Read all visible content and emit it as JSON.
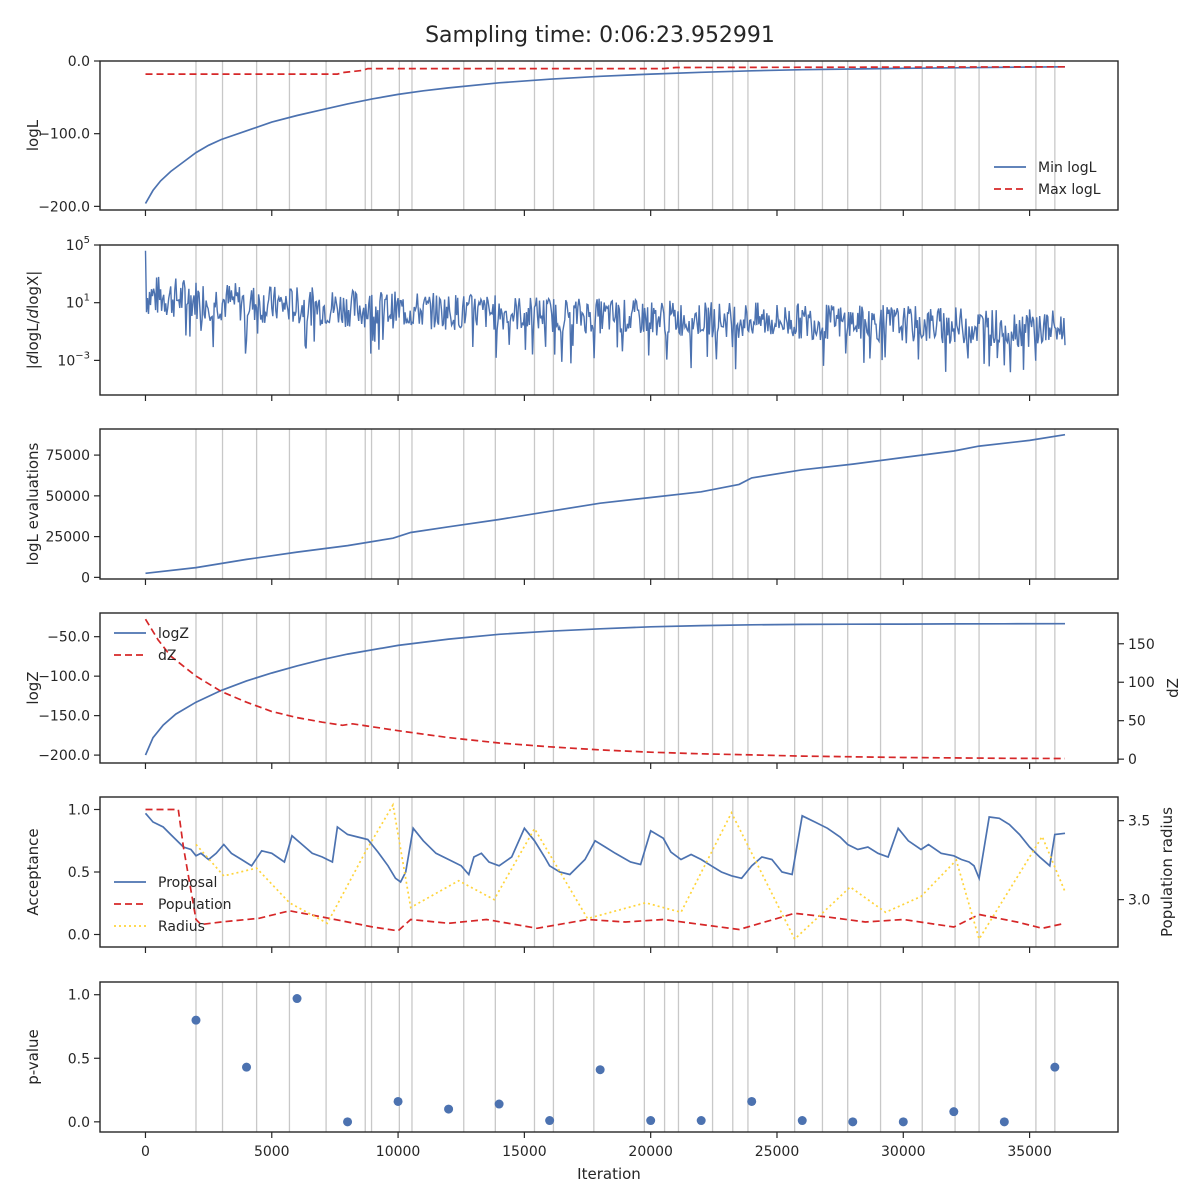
{
  "figure": {
    "title": "Sampling time: 0:06:23.952991"
  },
  "chart_data": [
    {
      "type": "line",
      "ylabel": "logL",
      "ylim": [
        -205,
        0
      ],
      "yticks": [
        0,
        -100,
        -200
      ],
      "legend": {
        "placement": "lower-right",
        "entries": [
          "Min logL",
          "Max logL"
        ]
      },
      "series": [
        {
          "name": "Min logL",
          "color": "#4c72b0",
          "style": "solid",
          "x": [
            0,
            300,
            600,
            1000,
            1500,
            2000,
            2500,
            3000,
            4000,
            5000,
            6000,
            7000,
            8000,
            9000,
            10000,
            11000,
            12000,
            14000,
            16000,
            18000,
            20000,
            22000,
            24000,
            26000,
            28000,
            30000,
            32000,
            34000,
            36400
          ],
          "y": [
            -196,
            -178,
            -165,
            -152,
            -139,
            -126,
            -116,
            -108,
            -96,
            -84,
            -75,
            -67,
            -59,
            -52,
            -46,
            -41,
            -37,
            -30,
            -25,
            -21,
            -18,
            -15.5,
            -13.5,
            -12,
            -11,
            -10,
            -9.3,
            -8.7,
            -8
          ]
        },
        {
          "name": "Max logL",
          "color": "#d62728",
          "style": "dashed",
          "x": [
            0,
            7600,
            7800,
            8600,
            8800,
            20500,
            21000,
            36400
          ],
          "y": [
            -18,
            -18,
            -16,
            -13,
            -10.5,
            -10.5,
            -9,
            -8
          ]
        }
      ]
    },
    {
      "type": "line",
      "ylabel": "|dlogL/dlogX|",
      "yscale": "log",
      "ylim": [
        -5.4,
        5.0
      ],
      "ytick_labels": [
        "10^5",
        "10^1",
        "10^-3"
      ],
      "series": [
        {
          "name": "",
          "color": "#4c72b0",
          "style": "solid",
          "note": "noisy derivative trace",
          "x": [
            0,
            5000,
            10000,
            15000,
            20000,
            25000,
            30000,
            36400
          ],
          "y_log10_upper": [
            3.0,
            2.2,
            1.8,
            1.5,
            1.2,
            1.0,
            0.8,
            0.5
          ],
          "y_log10_lower": [
            0,
            -0.5,
            -0.8,
            -1.0,
            -1.3,
            -1.5,
            -1.8,
            -2.2
          ]
        }
      ]
    },
    {
      "type": "line",
      "ylabel": "logL evaluations",
      "ylim": [
        -1000,
        91000
      ],
      "yticks": [
        0,
        25000,
        50000,
        75000
      ],
      "series": [
        {
          "name": "",
          "color": "#4c72b0",
          "style": "solid",
          "x": [
            0,
            2000,
            4000,
            6000,
            8000,
            9800,
            10500,
            12000,
            14000,
            16000,
            18000,
            20000,
            22000,
            23500,
            24000,
            26000,
            28000,
            30000,
            32000,
            33000,
            35000,
            36400
          ],
          "y": [
            2500,
            6000,
            11000,
            15500,
            19500,
            24000,
            27500,
            31000,
            35500,
            40500,
            45500,
            49000,
            52500,
            57000,
            61000,
            66000,
            69500,
            73500,
            77500,
            80500,
            84000,
            87500
          ]
        }
      ]
    },
    {
      "type": "line",
      "ylabel": "logZ",
      "y2label": "dZ",
      "ylim": [
        -210,
        -20
      ],
      "yticks": [
        -50,
        -100,
        -150,
        -200
      ],
      "y2lim": [
        -5,
        190
      ],
      "y2ticks": [
        0,
        50,
        100,
        150
      ],
      "legend": {
        "placement": "upper-left",
        "entries": [
          "logZ",
          "dZ"
        ]
      },
      "series": [
        {
          "name": "logZ",
          "axis": "left",
          "color": "#4c72b0",
          "style": "solid",
          "x": [
            0,
            300,
            700,
            1200,
            2000,
            3000,
            4000,
            5000,
            6000,
            7000,
            8000,
            10000,
            12000,
            14000,
            16000,
            18000,
            20000,
            22000,
            24000,
            26000,
            28000,
            30000,
            32000,
            34000,
            36400
          ],
          "y": [
            -200,
            -178,
            -162,
            -148,
            -133,
            -118,
            -106,
            -96,
            -87,
            -79,
            -72,
            -61,
            -53,
            -47,
            -43,
            -40,
            -37.5,
            -36,
            -35,
            -34.5,
            -34.2,
            -34,
            -33.8,
            -33.7,
            -33.6
          ]
        },
        {
          "name": "dZ",
          "axis": "right",
          "color": "#d62728",
          "style": "dashed",
          "x": [
            0,
            500,
            1000,
            2000,
            3000,
            4000,
            5000,
            6000,
            7000,
            7800,
            8200,
            8800,
            10000,
            12000,
            14000,
            16000,
            18000,
            20000,
            22000,
            24000,
            26000,
            28000,
            30000,
            32000,
            34000,
            36400
          ],
          "y": [
            182,
            155,
            134,
            108,
            88,
            74,
            62,
            54,
            48,
            44,
            46,
            43,
            37,
            28,
            21,
            16,
            12,
            9,
            7,
            5.5,
            4,
            3,
            2.2,
            1.6,
            1.1,
            0.8
          ]
        }
      ]
    },
    {
      "type": "line",
      "ylabel": "Acceptance",
      "y2label": "Population radius",
      "ylim": [
        -0.1,
        1.1
      ],
      "yticks": [
        0.0,
        0.5,
        1.0
      ],
      "y2lim": [
        2.7,
        3.65
      ],
      "y2ticks": [
        3.0,
        3.5
      ],
      "legend": {
        "placement": "left",
        "entries": [
          "Proposal",
          "Population",
          "Radius"
        ]
      },
      "series": [
        {
          "name": "Proposal",
          "axis": "left",
          "color": "#4c72b0",
          "style": "solid",
          "x": [
            0,
            300,
            700,
            1000,
            1500,
            1800,
            2000,
            2200,
            2500,
            2800,
            3100,
            3400,
            3800,
            4200,
            4600,
            5000,
            5500,
            5800,
            6200,
            6600,
            7000,
            7200,
            7400,
            7600,
            8000,
            8400,
            8800,
            9200,
            9600,
            9900,
            10100,
            10300,
            10600,
            11000,
            11500,
            12000,
            12500,
            12800,
            13000,
            13300,
            13600,
            14000,
            14500,
            15000,
            15400,
            15800,
            16000,
            16400,
            16800,
            17400,
            17800,
            18200,
            18600,
            19200,
            19600,
            20000,
            20500,
            20800,
            21200,
            21600,
            22000,
            22400,
            22800,
            23200,
            23600,
            24000,
            24400,
            24800,
            25200,
            25600,
            26000,
            26500,
            27000,
            27500,
            27800,
            28200,
            28600,
            29000,
            29400,
            29800,
            30200,
            30700,
            31000,
            31500,
            32000,
            32300,
            32600,
            32800,
            33000,
            33400,
            33800,
            34200,
            34600,
            35000,
            35400,
            35800,
            36000,
            36400
          ],
          "y": [
            0.97,
            0.9,
            0.86,
            0.8,
            0.7,
            0.68,
            0.63,
            0.65,
            0.6,
            0.65,
            0.72,
            0.65,
            0.6,
            0.55,
            0.67,
            0.65,
            0.58,
            0.79,
            0.72,
            0.65,
            0.62,
            0.6,
            0.58,
            0.86,
            0.8,
            0.78,
            0.76,
            0.66,
            0.55,
            0.45,
            0.42,
            0.5,
            0.85,
            0.75,
            0.65,
            0.6,
            0.55,
            0.48,
            0.62,
            0.65,
            0.58,
            0.55,
            0.62,
            0.85,
            0.75,
            0.62,
            0.55,
            0.5,
            0.48,
            0.6,
            0.75,
            0.7,
            0.65,
            0.58,
            0.56,
            0.83,
            0.77,
            0.66,
            0.6,
            0.64,
            0.6,
            0.55,
            0.5,
            0.47,
            0.45,
            0.55,
            0.62,
            0.6,
            0.5,
            0.48,
            0.95,
            0.9,
            0.85,
            0.78,
            0.72,
            0.68,
            0.7,
            0.65,
            0.62,
            0.85,
            0.75,
            0.68,
            0.72,
            0.65,
            0.63,
            0.6,
            0.58,
            0.55,
            0.45,
            0.94,
            0.93,
            0.88,
            0.8,
            0.7,
            0.62,
            0.55,
            0.8,
            0.81
          ]
        },
        {
          "name": "Population",
          "axis": "left",
          "color": "#d62728",
          "style": "dashed",
          "x": [
            0,
            1300,
            1500,
            2000,
            2200,
            3000,
            4500,
            5700,
            7000,
            8000,
            9000,
            10000,
            10500,
            12000,
            13500,
            15500,
            17500,
            19000,
            20500,
            22000,
            23500,
            25700,
            27000,
            28500,
            30000,
            32000,
            33000,
            34500,
            35500,
            36400
          ],
          "y": [
            1.0,
            1.0,
            0.7,
            0.12,
            0.08,
            0.1,
            0.13,
            0.19,
            0.14,
            0.1,
            0.06,
            0.03,
            0.12,
            0.09,
            0.12,
            0.05,
            0.12,
            0.1,
            0.12,
            0.08,
            0.04,
            0.17,
            0.14,
            0.1,
            0.12,
            0.06,
            0.16,
            0.1,
            0.05,
            0.09
          ]
        },
        {
          "name": "Radius",
          "axis": "right",
          "color": "#ffd43b",
          "style": "dotted",
          "x": [
            2000,
            3100,
            4400,
            5700,
            7200,
            8700,
            9800,
            10500,
            12400,
            13800,
            15400,
            17500,
            19800,
            21200,
            23200,
            25700,
            27900,
            29300,
            30700,
            32100,
            33000,
            35500,
            36400
          ],
          "y": [
            3.35,
            3.15,
            3.2,
            2.98,
            2.85,
            3.3,
            3.6,
            2.95,
            3.12,
            3.0,
            3.45,
            2.88,
            2.98,
            2.92,
            3.55,
            2.75,
            3.08,
            2.92,
            3.02,
            3.25,
            2.75,
            3.4,
            3.05
          ]
        }
      ]
    },
    {
      "type": "scatter",
      "ylabel": "p-value",
      "xlabel": "Iteration",
      "ylim": [
        -0.08,
        1.1
      ],
      "yticks": [
        0.0,
        0.5,
        1.0
      ],
      "series": [
        {
          "name": "",
          "color": "#4c72b0",
          "x": [
            2000,
            4000,
            6000,
            8000,
            10000,
            12000,
            14000,
            16000,
            18000,
            20000,
            22000,
            24000,
            26000,
            28000,
            30000,
            32000,
            34000,
            36000
          ],
          "y": [
            0.8,
            0.43,
            0.97,
            0.0,
            0.16,
            0.1,
            0.14,
            0.01,
            0.41,
            0.01,
            0.01,
            0.16,
            0.01,
            0.0,
            0.0,
            0.08,
            0.0,
            0.43
          ]
        }
      ]
    }
  ],
  "shared_x": {
    "xlim": [
      -1800,
      38500
    ],
    "xticks": [
      0,
      5000,
      10000,
      15000,
      20000,
      25000,
      30000,
      35000
    ],
    "vlines": [
      2000,
      3050,
      4400,
      5700,
      7150,
      8700,
      8950,
      10050,
      10550,
      12600,
      13850,
      15400,
      16150,
      17750,
      19750,
      20550,
      21100,
      22450,
      23250,
      23850,
      25700,
      26800,
      27800,
      29100,
      30750,
      32050,
      33000,
      35250,
      36000
    ]
  }
}
